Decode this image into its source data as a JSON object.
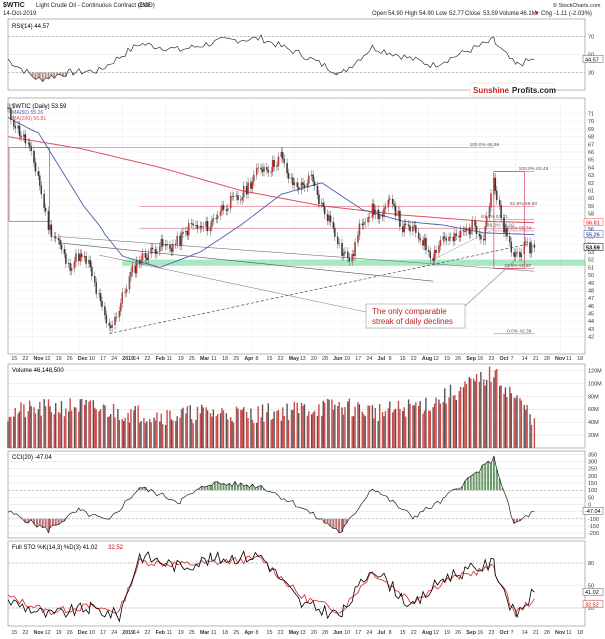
{
  "header": {
    "symbol": "$WTIC",
    "name": "Light Crude Oil - Continuous Contract (EOD)",
    "exchange": "CME",
    "date": "14-Oct-2019",
    "open_label": "Open",
    "open": "54.90",
    "high_label": "High",
    "high": "54.90",
    "low_label": "Low",
    "low": "52.77",
    "close_label": "Close",
    "close": "53.59",
    "volume_label": "Volume",
    "volume": "46.1M",
    "chg_label": "Chg",
    "chg": "-1.11 (-2.03%)",
    "chg_arrow": "▼",
    "copyright": "© StockCharts.com"
  },
  "rsi": {
    "legend": "RSI(14) 44.57",
    "ticks": [
      {
        "v": 70,
        "label": "70"
      },
      {
        "v": 50,
        "label": "50"
      },
      {
        "v": 30,
        "label": "30"
      }
    ],
    "value_label": "44.57"
  },
  "main": {
    "legend_price": "$WTIC (Daily) 53.59",
    "legend_ma50": "MA(50) 55.26",
    "legend_ma200": "MA(200) 56.81",
    "logo_red": "Sunshine",
    "logo_black": "Profits.com",
    "annotation": [
      "The only comparable",
      "streak of daily declines"
    ],
    "fib_labels": [
      {
        "text": "100.0% 66.59",
        "v": 66.59,
        "x": 0.8
      },
      {
        "text": "100.0% 63.48",
        "v": 63.48,
        "x": 0.885
      },
      {
        "text": "61.8% 58.93",
        "v": 58.93,
        "x": 0.87
      },
      {
        "text": "61.8% 57.21",
        "v": 57.21,
        "x": 0.82
      },
      {
        "text": "38.2% 56.10",
        "v": 56.1,
        "x": 0.83
      },
      {
        "text": "50.0% 55.74",
        "v": 55.74,
        "x": 0.86
      },
      {
        "text": "23.6% 50.87",
        "v": 50.87,
        "x": 0.86
      },
      {
        "text": "0.0% 42.36",
        "v": 42.36,
        "x": 0.865
      }
    ],
    "price_badges": [
      {
        "text": "56.81",
        "v": 56.81,
        "color": "#e05060"
      },
      {
        "text": "55.26",
        "v": 55.26,
        "color": "#4a5fa8"
      },
      {
        "text": "53.59",
        "v": 53.59,
        "color": "#000000"
      }
    ]
  },
  "x_axis": {
    "labels": [
      "15",
      "22",
      "Nov",
      "12",
      "19",
      "26",
      "Dec",
      "10",
      "17",
      "24",
      "2019",
      "14",
      "22",
      "Feb",
      "11",
      "19",
      "25",
      "Mar",
      "11",
      "18",
      "25",
      "Apr",
      "8",
      "15",
      "22",
      "May",
      "13",
      "20",
      "28",
      "Jun",
      "10",
      "17",
      "24",
      "Jul",
      "8",
      "15",
      "22",
      "Aug",
      "12",
      "19",
      "26",
      "Sep",
      "16",
      "23",
      "Oct",
      "7",
      "14",
      "21",
      "28",
      "Nov",
      "11",
      "18"
    ]
  },
  "volume": {
    "legend": "Volume 46,148,500",
    "ticks": [
      {
        "v": 1200,
        "label": "120M"
      },
      {
        "v": 1000,
        "label": "100M"
      },
      {
        "v": 800,
        "label": "80M"
      },
      {
        "v": 600,
        "label": "60M"
      },
      {
        "v": 400,
        "label": "40M"
      },
      {
        "v": 200,
        "label": "20M"
      }
    ]
  },
  "cci": {
    "legend": "CCI(20) -47.04",
    "ticks": [
      {
        "v": 350,
        "label": "350"
      },
      {
        "v": 300,
        "label": "300"
      },
      {
        "v": 250,
        "label": "250"
      },
      {
        "v": 200,
        "label": "200"
      },
      {
        "v": 150,
        "label": "150"
      },
      {
        "v": 100,
        "label": "100"
      },
      {
        "v": 50,
        "label": "50"
      },
      {
        "v": 0,
        "label": "0"
      },
      {
        "v": -50,
        "label": "-50"
      },
      {
        "v": -100,
        "label": "-100"
      },
      {
        "v": -150,
        "label": "-150"
      },
      {
        "v": -200,
        "label": "-200"
      }
    ],
    "value_label": "-47.04"
  },
  "sto": {
    "legend_a": "Full STO %K(14,3) %D(3) 41.02",
    "legend_b": "32.52",
    "ticks": [
      {
        "v": 80,
        "label": "80"
      },
      {
        "v": 50,
        "label": "50"
      },
      {
        "v": 20,
        "label": "20"
      }
    ],
    "value_k": "41.02",
    "value_d": "32.52"
  },
  "chart_data": {
    "type": "line",
    "title": "$WTIC Light Crude Oil - Continuous Contract (EOD)",
    "xlabel": "",
    "ylabel": "",
    "x_range": [
      "2018-10-15",
      "2019-11-18"
    ],
    "price_ylim": [
      40,
      71
    ],
    "price_ticks": [
      42,
      43,
      44,
      45,
      46,
      47,
      48,
      49,
      50,
      51,
      52,
      53,
      54,
      55,
      56,
      57,
      58,
      59,
      60,
      61,
      62,
      63,
      64,
      65,
      66,
      67,
      68,
      69,
      70,
      71
    ],
    "price_series": [
      {
        "d": "2018-10-15",
        "v": 71.5
      },
      {
        "d": "2018-10-22",
        "v": 69.0
      },
      {
        "d": "2018-10-29",
        "v": 67.0
      },
      {
        "d": "2018-11-05",
        "v": 63.0
      },
      {
        "d": "2018-11-12",
        "v": 56.5
      },
      {
        "d": "2018-11-19",
        "v": 54.5
      },
      {
        "d": "2018-11-26",
        "v": 51.0
      },
      {
        "d": "2018-12-03",
        "v": 52.5
      },
      {
        "d": "2018-12-10",
        "v": 51.5
      },
      {
        "d": "2018-12-17",
        "v": 47.0
      },
      {
        "d": "2018-12-24",
        "v": 43.0
      },
      {
        "d": "2018-12-31",
        "v": 45.5
      },
      {
        "d": "2019-01-07",
        "v": 49.5
      },
      {
        "d": "2019-01-14",
        "v": 52.0
      },
      {
        "d": "2019-01-22",
        "v": 53.0
      },
      {
        "d": "2019-01-28",
        "v": 54.0
      },
      {
        "d": "2019-02-04",
        "v": 53.5
      },
      {
        "d": "2019-02-11",
        "v": 54.5
      },
      {
        "d": "2019-02-19",
        "v": 56.5
      },
      {
        "d": "2019-02-25",
        "v": 56.0
      },
      {
        "d": "2019-03-04",
        "v": 56.5
      },
      {
        "d": "2019-03-11",
        "v": 58.5
      },
      {
        "d": "2019-03-18",
        "v": 59.5
      },
      {
        "d": "2019-03-25",
        "v": 60.0
      },
      {
        "d": "2019-04-01",
        "v": 62.0
      },
      {
        "d": "2019-04-08",
        "v": 64.0
      },
      {
        "d": "2019-04-15",
        "v": 64.0
      },
      {
        "d": "2019-04-22",
        "v": 65.5
      },
      {
        "d": "2019-04-29",
        "v": 62.0
      },
      {
        "d": "2019-05-06",
        "v": 61.5
      },
      {
        "d": "2019-05-13",
        "v": 62.5
      },
      {
        "d": "2019-05-20",
        "v": 59.0
      },
      {
        "d": "2019-05-28",
        "v": 56.5
      },
      {
        "d": "2019-06-03",
        "v": 53.0
      },
      {
        "d": "2019-06-10",
        "v": 52.0
      },
      {
        "d": "2019-06-17",
        "v": 57.0
      },
      {
        "d": "2019-06-24",
        "v": 58.5
      },
      {
        "d": "2019-07-01",
        "v": 57.5
      },
      {
        "d": "2019-07-08",
        "v": 60.0
      },
      {
        "d": "2019-07-15",
        "v": 56.0
      },
      {
        "d": "2019-07-22",
        "v": 56.0
      },
      {
        "d": "2019-07-29",
        "v": 54.5
      },
      {
        "d": "2019-08-05",
        "v": 52.5
      },
      {
        "d": "2019-08-12",
        "v": 55.0
      },
      {
        "d": "2019-08-19",
        "v": 54.5
      },
      {
        "d": "2019-08-26",
        "v": 55.5
      },
      {
        "d": "2019-09-03",
        "v": 56.5
      },
      {
        "d": "2019-09-09",
        "v": 55.0
      },
      {
        "d": "2019-09-16",
        "v": 62.0
      },
      {
        "d": "2019-09-23",
        "v": 56.0
      },
      {
        "d": "2019-09-30",
        "v": 52.5
      },
      {
        "d": "2019-10-07",
        "v": 53.5
      },
      {
        "d": "2019-10-14",
        "v": 53.59
      }
    ],
    "ma50": [
      {
        "d": "2018-10-15",
        "v": 70.5
      },
      {
        "d": "2018-11-05",
        "v": 68.5
      },
      {
        "d": "2018-12-03",
        "v": 60.0
      },
      {
        "d": "2019-01-02",
        "v": 52.5
      },
      {
        "d": "2019-01-28",
        "v": 51.0
      },
      {
        "d": "2019-02-25",
        "v": 53.0
      },
      {
        "d": "2019-03-25",
        "v": 56.5
      },
      {
        "d": "2019-04-22",
        "v": 60.5
      },
      {
        "d": "2019-05-20",
        "v": 62.0
      },
      {
        "d": "2019-06-17",
        "v": 58.5
      },
      {
        "d": "2019-07-15",
        "v": 57.0
      },
      {
        "d": "2019-08-12",
        "v": 56.5
      },
      {
        "d": "2019-09-09",
        "v": 55.5
      },
      {
        "d": "2019-10-14",
        "v": 55.26
      }
    ],
    "ma200": [
      {
        "d": "2018-10-15",
        "v": 68.0
      },
      {
        "d": "2018-12-03",
        "v": 66.5
      },
      {
        "d": "2019-01-28",
        "v": 64.0
      },
      {
        "d": "2019-03-25",
        "v": 61.0
      },
      {
        "d": "2019-05-20",
        "v": 59.0
      },
      {
        "d": "2019-07-15",
        "v": 57.8
      },
      {
        "d": "2019-09-09",
        "v": 57.0
      },
      {
        "d": "2019-10-14",
        "v": 56.81
      }
    ],
    "support_zone": [
      51.2,
      52.0
    ],
    "fib_levels": [
      66.59,
      63.48,
      58.93,
      57.21,
      56.1,
      55.74,
      50.87,
      42.36
    ],
    "volume_M": [
      {
        "d": "2018-10-15",
        "v": 55
      },
      {
        "d": "2018-11-05",
        "v": 60
      },
      {
        "d": "2018-12-03",
        "v": 65
      },
      {
        "d": "2019-01-02",
        "v": 55
      },
      {
        "d": "2019-02-04",
        "v": 50
      },
      {
        "d": "2019-03-04",
        "v": 55
      },
      {
        "d": "2019-04-01",
        "v": 52
      },
      {
        "d": "2019-05-06",
        "v": 60
      },
      {
        "d": "2019-06-03",
        "v": 65
      },
      {
        "d": "2019-07-01",
        "v": 55
      },
      {
        "d": "2019-08-05",
        "v": 70
      },
      {
        "d": "2019-09-16",
        "v": 115
      },
      {
        "d": "2019-10-14",
        "v": 46.1
      }
    ],
    "rsi14": [
      {
        "d": "2018-10-15",
        "v": 45
      },
      {
        "d": "2018-11-05",
        "v": 22
      },
      {
        "d": "2018-11-26",
        "v": 30
      },
      {
        "d": "2018-12-17",
        "v": 32
      },
      {
        "d": "2019-01-14",
        "v": 62
      },
      {
        "d": "2019-02-11",
        "v": 55
      },
      {
        "d": "2019-03-11",
        "v": 65
      },
      {
        "d": "2019-04-08",
        "v": 68
      },
      {
        "d": "2019-05-06",
        "v": 50
      },
      {
        "d": "2019-06-03",
        "v": 28
      },
      {
        "d": "2019-06-24",
        "v": 58
      },
      {
        "d": "2019-08-05",
        "v": 38
      },
      {
        "d": "2019-09-16",
        "v": 66
      },
      {
        "d": "2019-10-01",
        "v": 38
      },
      {
        "d": "2019-10-14",
        "v": 44.57
      }
    ],
    "cci20": [
      {
        "d": "2018-10-15",
        "v": -50
      },
      {
        "d": "2018-11-12",
        "v": -180
      },
      {
        "d": "2018-12-03",
        "v": -40
      },
      {
        "d": "2018-12-24",
        "v": -120
      },
      {
        "d": "2019-01-14",
        "v": 120
      },
      {
        "d": "2019-02-11",
        "v": 20
      },
      {
        "d": "2019-03-04",
        "v": 150
      },
      {
        "d": "2019-04-08",
        "v": 130
      },
      {
        "d": "2019-05-06",
        "v": -20
      },
      {
        "d": "2019-06-03",
        "v": -200
      },
      {
        "d": "2019-06-24",
        "v": 120
      },
      {
        "d": "2019-07-22",
        "v": -90
      },
      {
        "d": "2019-08-12",
        "v": 30
      },
      {
        "d": "2019-09-16",
        "v": 320
      },
      {
        "d": "2019-09-30",
        "v": -140
      },
      {
        "d": "2019-10-14",
        "v": -47.04
      }
    ],
    "sto_k": [
      {
        "d": "2018-10-15",
        "v": 30
      },
      {
        "d": "2018-11-12",
        "v": 10
      },
      {
        "d": "2018-12-10",
        "v": 20
      },
      {
        "d": "2018-12-31",
        "v": 10
      },
      {
        "d": "2019-01-14",
        "v": 90
      },
      {
        "d": "2019-02-11",
        "v": 75
      },
      {
        "d": "2019-03-04",
        "v": 85
      },
      {
        "d": "2019-04-08",
        "v": 90
      },
      {
        "d": "2019-05-06",
        "v": 25
      },
      {
        "d": "2019-06-03",
        "v": 10
      },
      {
        "d": "2019-06-24",
        "v": 75
      },
      {
        "d": "2019-07-22",
        "v": 20
      },
      {
        "d": "2019-08-12",
        "v": 60
      },
      {
        "d": "2019-09-16",
        "v": 80
      },
      {
        "d": "2019-10-01",
        "v": 8
      },
      {
        "d": "2019-10-14",
        "v": 41.02
      }
    ],
    "sto_d": [
      {
        "d": "2018-10-15",
        "v": 35
      },
      {
        "d": "2018-11-12",
        "v": 15
      },
      {
        "d": "2018-12-10",
        "v": 22
      },
      {
        "d": "2018-12-31",
        "v": 15
      },
      {
        "d": "2019-01-14",
        "v": 82
      },
      {
        "d": "2019-02-11",
        "v": 78
      },
      {
        "d": "2019-03-04",
        "v": 80
      },
      {
        "d": "2019-04-08",
        "v": 86
      },
      {
        "d": "2019-05-06",
        "v": 35
      },
      {
        "d": "2019-06-03",
        "v": 15
      },
      {
        "d": "2019-06-24",
        "v": 68
      },
      {
        "d": "2019-07-22",
        "v": 28
      },
      {
        "d": "2019-08-12",
        "v": 55
      },
      {
        "d": "2019-09-16",
        "v": 75
      },
      {
        "d": "2019-10-01",
        "v": 12
      },
      {
        "d": "2019-10-14",
        "v": 32.52
      }
    ],
    "colors": {
      "up": "#dd3333",
      "down": "#333333",
      "ma50": "#4a5fa8",
      "ma200": "#e05060",
      "fib": "#cc2244",
      "support": "#3ecf7a",
      "rsi": "#333333",
      "cci_pos": "#3a7a3a",
      "cci_neg": "#a04040",
      "sto_k": "#000000",
      "sto_d": "#dd2222"
    }
  }
}
